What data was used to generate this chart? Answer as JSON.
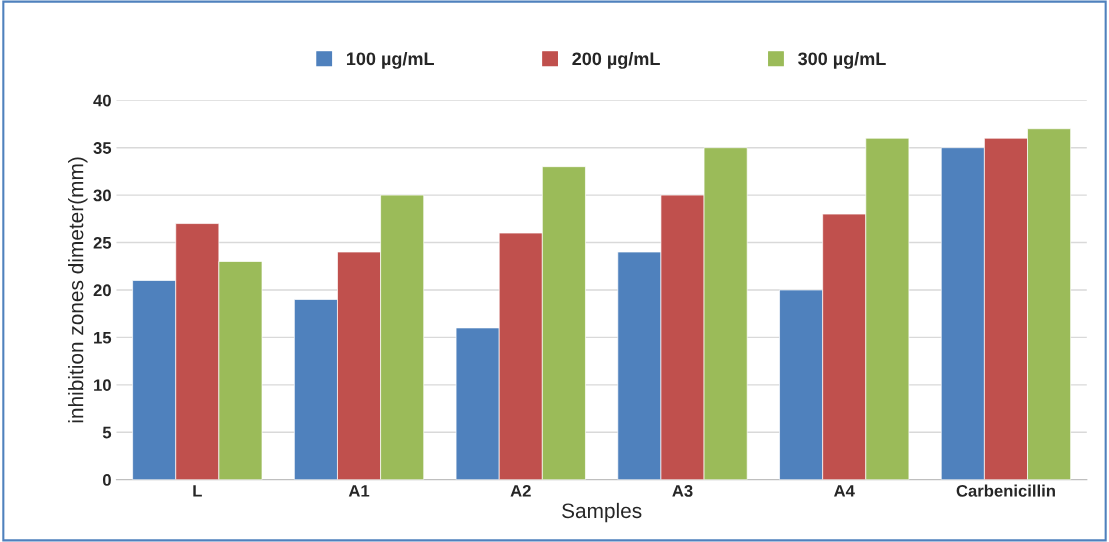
{
  "chart_data": {
    "type": "bar",
    "xlabel": "Samples",
    "ylabel": "inhibition zones dimeter(mm)",
    "categories": [
      "L",
      "A1",
      "A2",
      "A3",
      "A4",
      "Carbenicillin"
    ],
    "series": [
      {
        "name": "100 µg/mL",
        "color": "#4f81bd",
        "values": [
          21,
          19,
          16,
          24,
          20,
          35
        ]
      },
      {
        "name": "200 µg/mL",
        "color": "#c0504d",
        "values": [
          27,
          24,
          26,
          30,
          28,
          36
        ]
      },
      {
        "name": "300 µg/mL",
        "color": "#9bbb59",
        "values": [
          23,
          30,
          33,
          35,
          36,
          37
        ]
      }
    ],
    "ylim": [
      0,
      40
    ],
    "yticks": [
      0,
      5,
      10,
      15,
      20,
      25,
      30,
      35,
      40
    ],
    "grid": "y",
    "legend": "top"
  }
}
